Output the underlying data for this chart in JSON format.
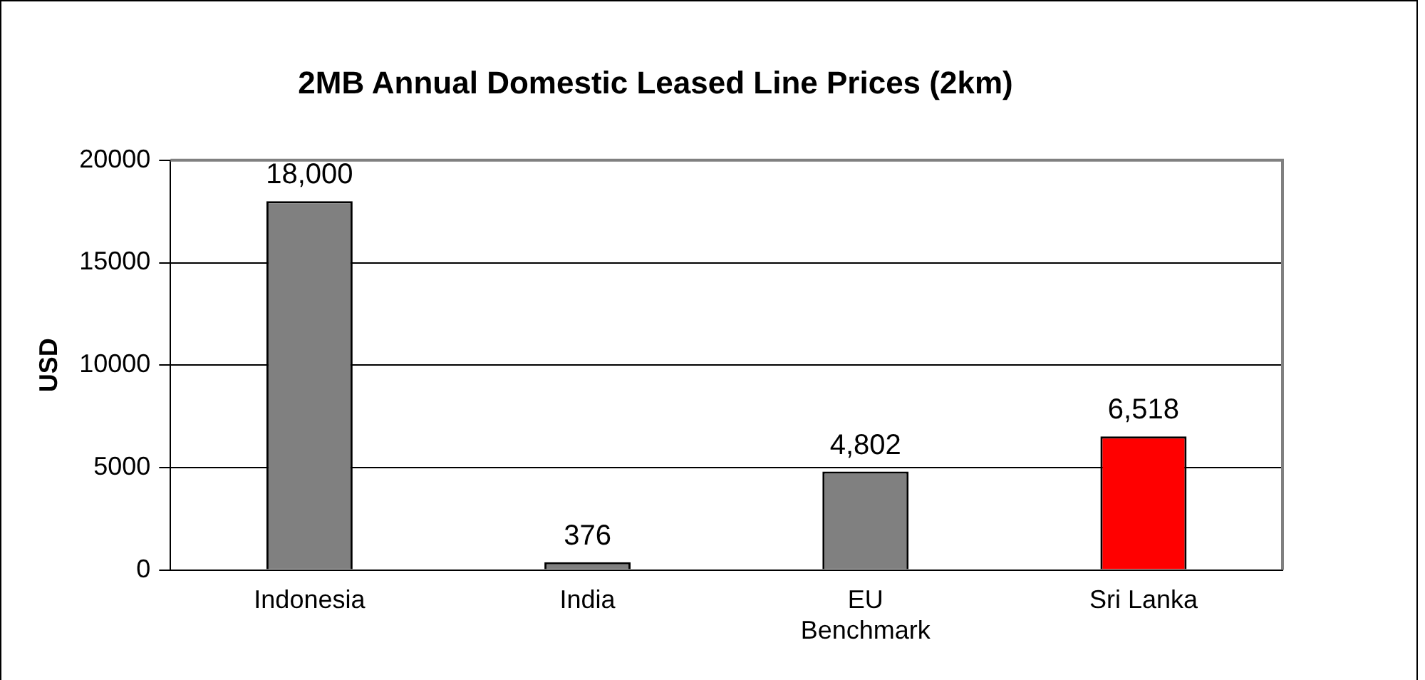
{
  "chart_data": {
    "type": "bar",
    "title": "2MB Annual Domestic Leased Line Prices (2km)",
    "ylabel": "USD",
    "categories": [
      "Indonesia",
      "India",
      "EU Benchmark",
      "Sri Lanka"
    ],
    "values": [
      18000,
      376,
      4802,
      6518
    ],
    "colors": [
      "#808080",
      "#808080",
      "#808080",
      "#ff0000"
    ],
    "value_labels": [
      "18,000",
      "376",
      "4,802",
      "6,518"
    ],
    "ylim": [
      0,
      20000
    ],
    "yticks": [
      0,
      5000,
      10000,
      15000,
      20000
    ],
    "grid": "y",
    "legend": false
  }
}
